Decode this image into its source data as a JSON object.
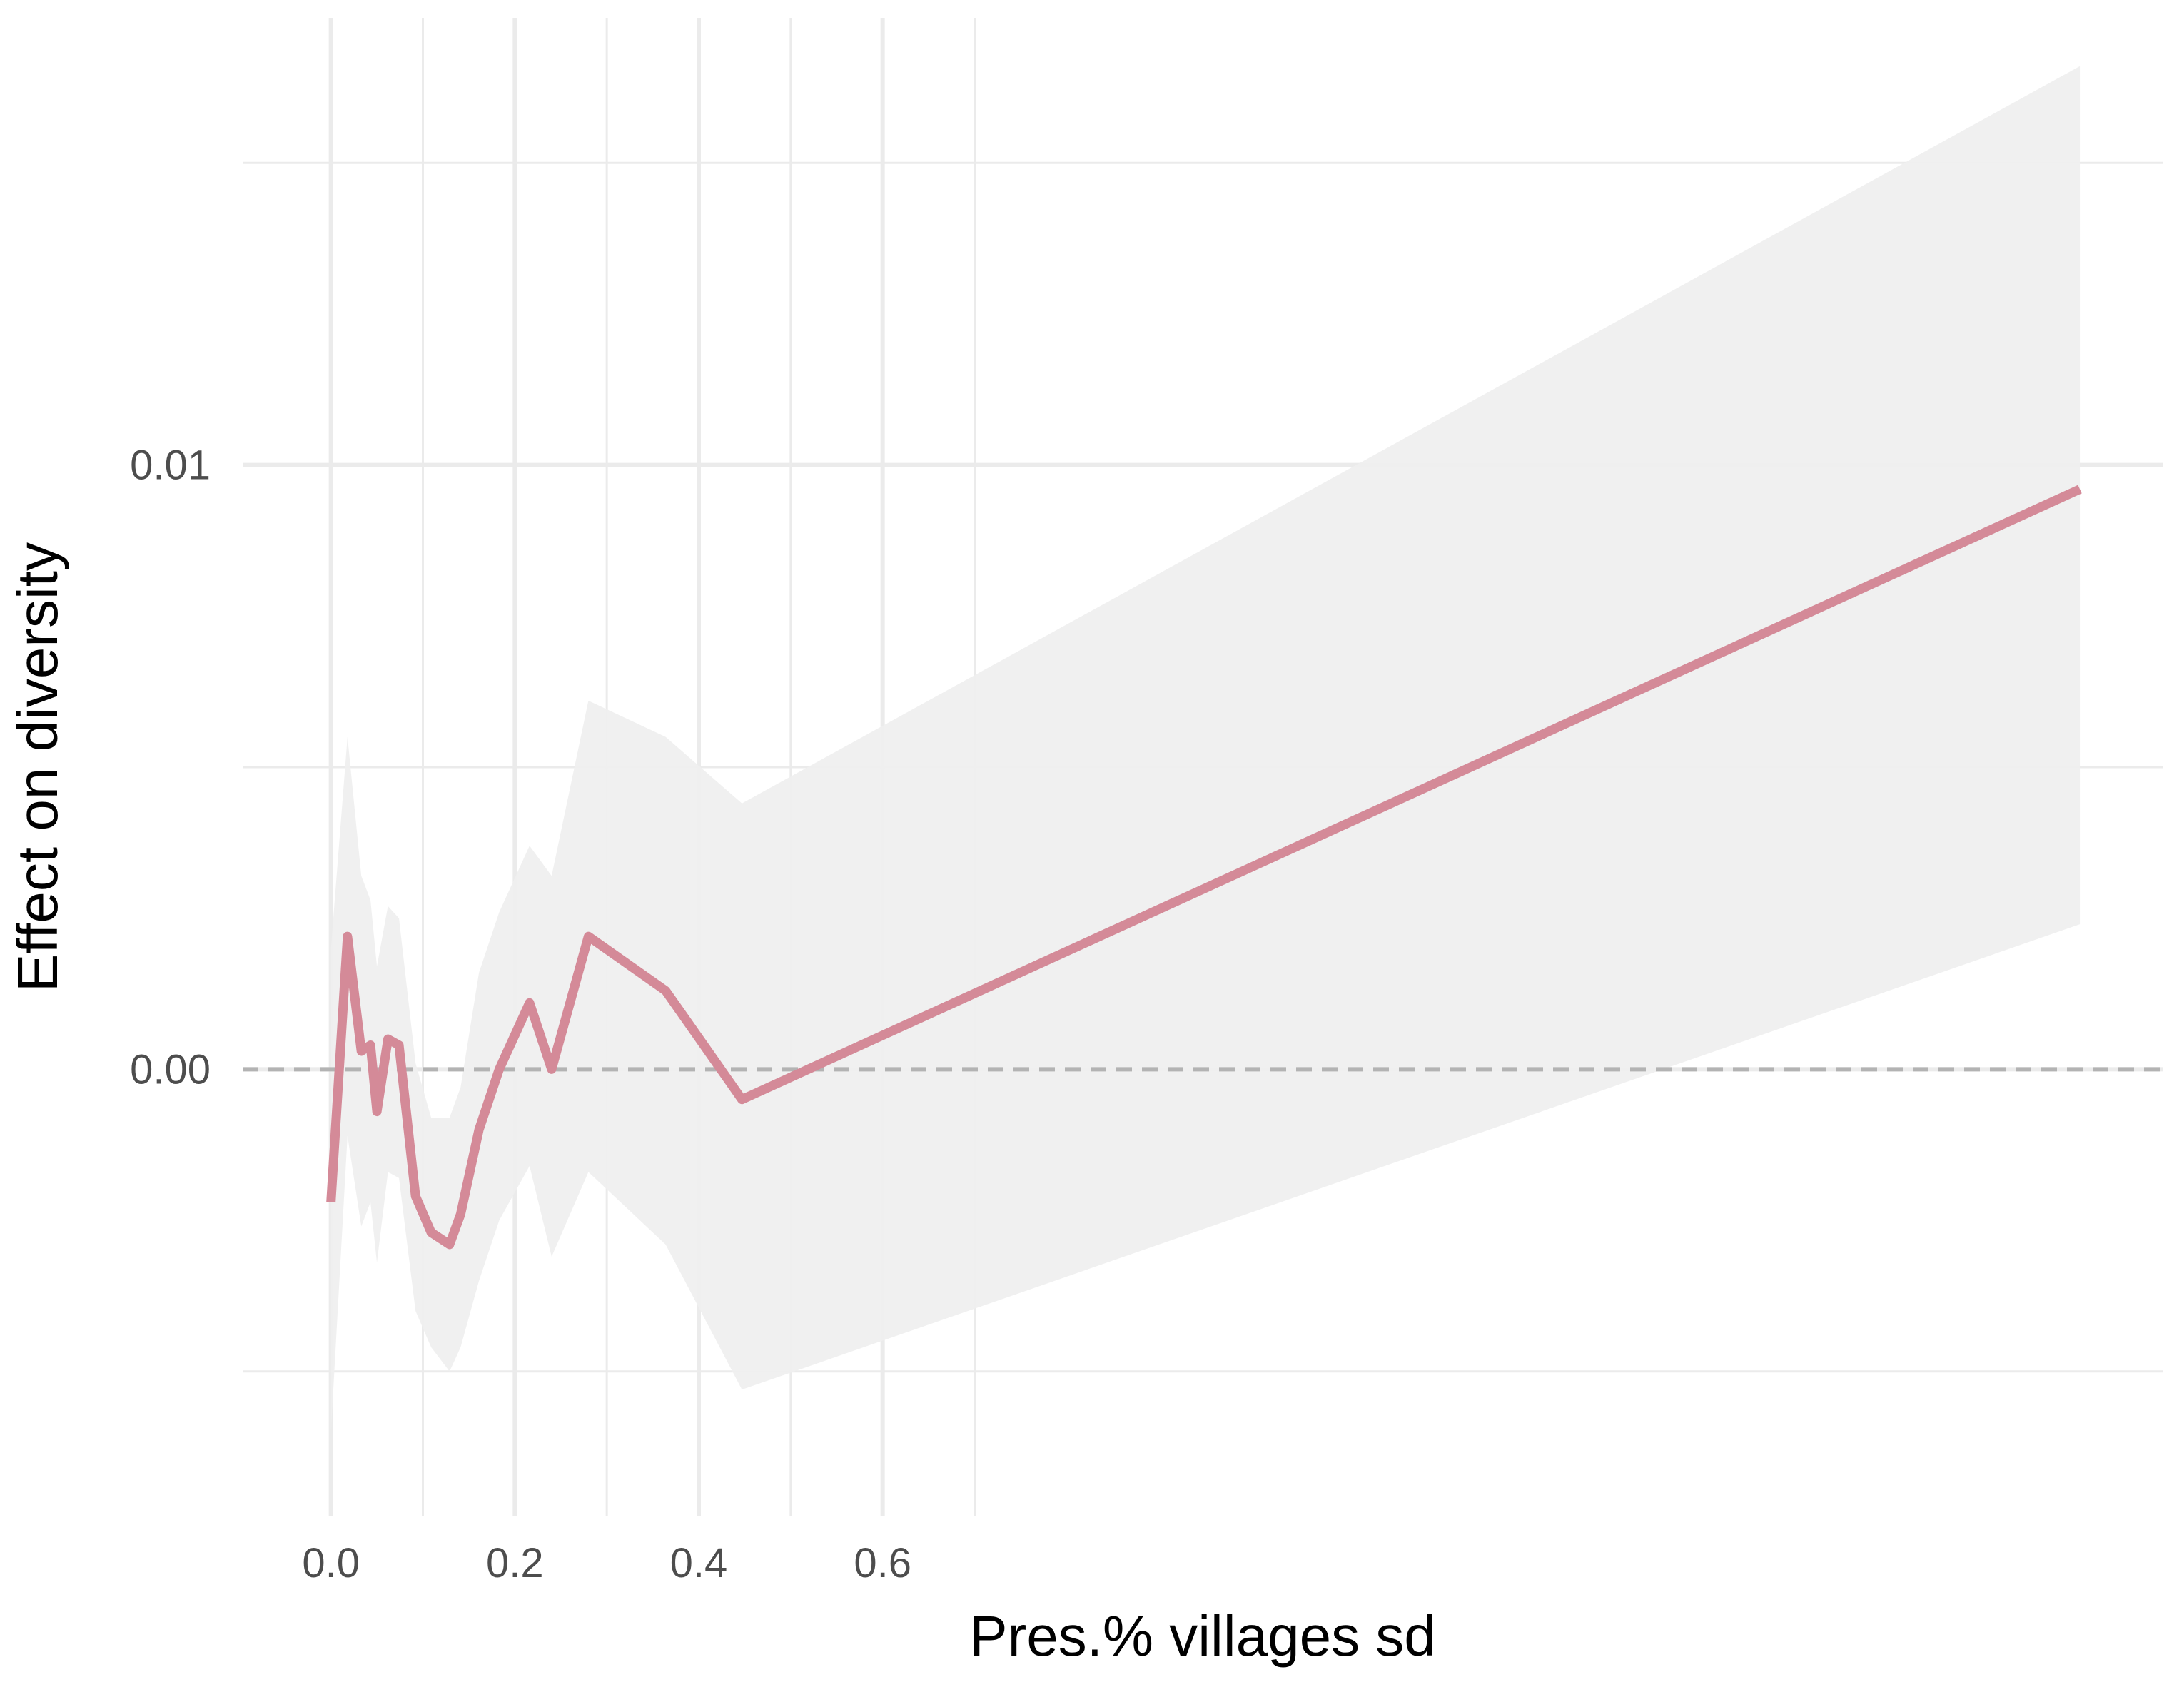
{
  "chart_data": {
    "type": "line",
    "title": "",
    "xlabel": "Pres.% villages sd",
    "ylabel": "Effect on diversity",
    "xlim": [
      -0.096,
      1.992
    ],
    "ylim": [
      -0.0074,
      0.0174
    ],
    "x_ticks": [
      {
        "value": 0.0,
        "label": "0.0"
      },
      {
        "value": 0.2,
        "label": "0.2"
      },
      {
        "value": 0.4,
        "label": "0.4"
      },
      {
        "value": 0.6,
        "label": "0.6"
      }
    ],
    "x_minor_ticks": [
      0.1,
      0.3,
      0.5,
      0.7
    ],
    "y_ticks": [
      {
        "value": 0.0,
        "label": "0.00"
      },
      {
        "value": 0.01,
        "label": "0.01"
      }
    ],
    "y_minor_ticks": [
      -0.005,
      0.005,
      0.015
    ],
    "reference_line": {
      "y": 0,
      "style": "dashed",
      "color": "#b3b3b3"
    },
    "grid": true,
    "colors": {
      "line": "#d48a98",
      "band": "#efefef",
      "grid": "#ebebeb",
      "background": "#ffffff"
    },
    "series": [
      {
        "type": "line",
        "x": [
          0.0,
          0.018,
          0.033,
          0.043,
          0.05,
          0.062,
          0.074,
          0.092,
          0.109,
          0.129,
          0.141,
          0.161,
          0.183,
          0.216,
          0.24,
          0.28,
          0.364,
          0.447,
          1.902
        ],
        "y": [
          -0.0022,
          0.0022,
          0.0003,
          0.0004,
          -0.0007,
          0.0005,
          0.0004,
          -0.0021,
          -0.0027,
          -0.0029,
          -0.0024,
          -0.001,
          0.0,
          0.0011,
          0.0,
          0.0022,
          0.0013,
          -0.0005,
          0.0096
        ]
      },
      {
        "type": "area",
        "x": [
          0.0,
          0.018,
          0.033,
          0.043,
          0.05,
          0.062,
          0.074,
          0.092,
          0.109,
          0.129,
          0.141,
          0.161,
          0.183,
          0.216,
          0.24,
          0.28,
          0.364,
          0.447,
          1.902
        ],
        "y_lower": [
          -0.006,
          -0.0011,
          -0.0026,
          -0.0022,
          -0.0032,
          -0.0017,
          -0.0018,
          -0.004,
          -0.0046,
          -0.005,
          -0.0046,
          -0.0035,
          -0.0025,
          -0.0016,
          -0.0031,
          -0.0017,
          -0.0029,
          -0.0053,
          0.0024
        ],
        "y_upper": [
          0.002,
          0.0055,
          0.0032,
          0.0028,
          0.0017,
          0.0027,
          0.0025,
          0.0001,
          -0.0008,
          -0.0008,
          -0.0003,
          0.0016,
          0.0026,
          0.0037,
          0.0032,
          0.0061,
          0.0055,
          0.0044,
          0.0166
        ]
      }
    ]
  }
}
